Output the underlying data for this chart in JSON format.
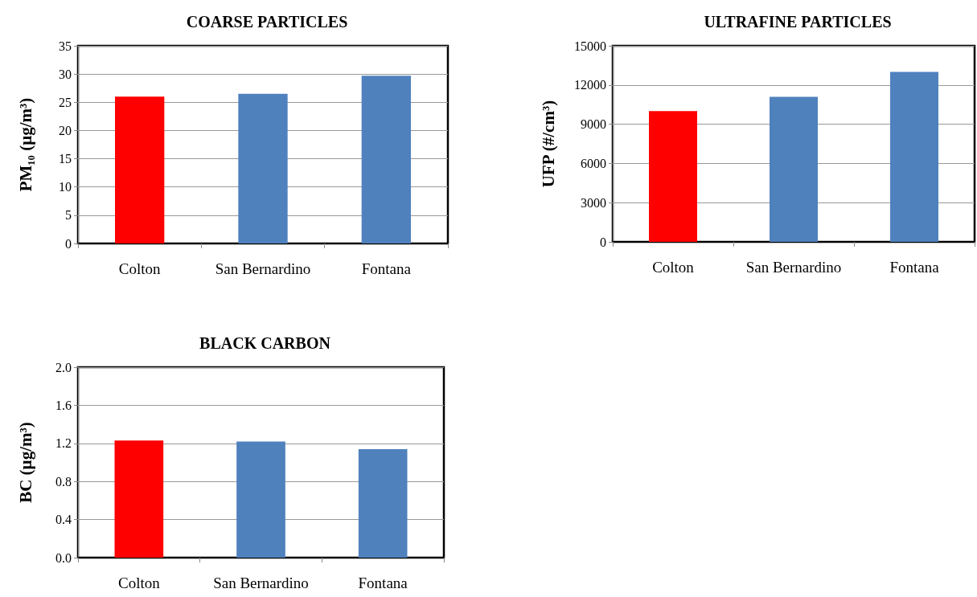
{
  "chart_data": [
    {
      "type": "bar",
      "title": "COARSE PARTICLES",
      "ylabel": "PM₁₀ (µg/m³)",
      "categories": [
        "Colton",
        "San Bernardino",
        "Fontana"
      ],
      "values": [
        26,
        26.5,
        29.7
      ],
      "colors": [
        "#ff0000",
        "#4f81bd",
        "#4f81bd"
      ],
      "ylim": [
        0,
        35
      ],
      "yticks": [
        0,
        5,
        10,
        15,
        20,
        25,
        30,
        35
      ],
      "grid": "y"
    },
    {
      "type": "bar",
      "title": "ULTRAFINE PARTICLES",
      "ylabel": "UFP (#/cm³)",
      "categories": [
        "Colton",
        "San Bernardino",
        "Fontana"
      ],
      "values": [
        10000,
        11100,
        13000
      ],
      "colors": [
        "#ff0000",
        "#4f81bd",
        "#4f81bd"
      ],
      "ylim": [
        0,
        15000
      ],
      "yticks": [
        0,
        3000,
        6000,
        9000,
        12000,
        15000
      ],
      "grid": "y"
    },
    {
      "type": "bar",
      "title": "BLACK CARBON",
      "ylabel": "BC (µg/m³)",
      "categories": [
        "Colton",
        "San Bernardino",
        "Fontana"
      ],
      "values": [
        1.23,
        1.22,
        1.14
      ],
      "colors": [
        "#ff0000",
        "#4f81bd",
        "#4f81bd"
      ],
      "ylim": [
        0,
        2
      ],
      "yticks": [
        {
          "value": 0,
          "label": "0.0"
        },
        {
          "value": 0.4,
          "label": "0.4"
        },
        {
          "value": 0.8,
          "label": "0.8"
        },
        {
          "value": 1.2,
          "label": "1.2"
        },
        {
          "value": 1.6,
          "label": "1.6"
        },
        {
          "value": 2,
          "label": "2.0"
        }
      ],
      "grid": "y"
    }
  ]
}
